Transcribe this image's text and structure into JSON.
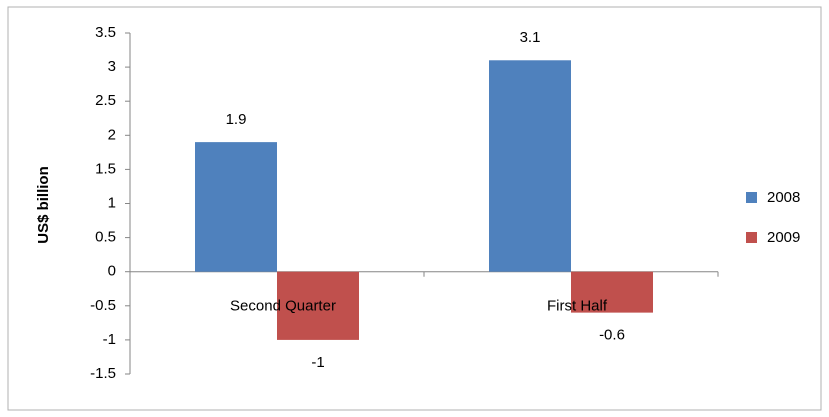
{
  "chart_data": {
    "type": "bar",
    "y_label": "US$ billion",
    "categories": [
      "Second Quarter",
      "First Half"
    ],
    "series": [
      {
        "name": "2008",
        "color": "#4f81bd",
        "values": [
          1.9,
          3.1
        ]
      },
      {
        "name": "2009",
        "color": "#c0504d",
        "values": [
          -1,
          -0.6
        ]
      }
    ],
    "ylim": [
      -1.5,
      3.5
    ],
    "yticks": [
      -1.5,
      -1,
      -0.5,
      0,
      0.5,
      1,
      1.5,
      2,
      2.5,
      3,
      3.5
    ],
    "data_labels": true
  }
}
